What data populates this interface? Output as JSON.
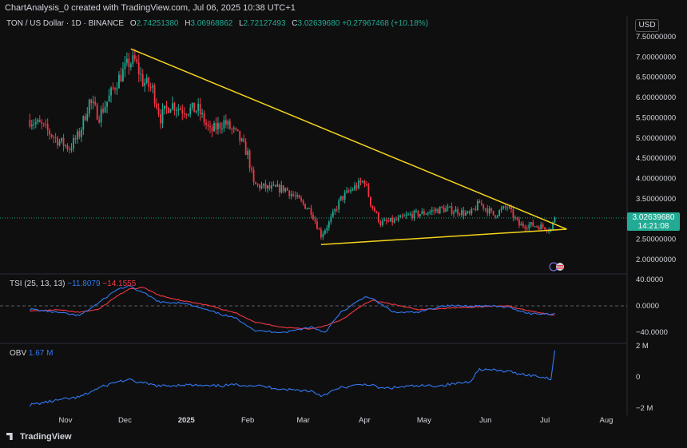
{
  "header": {
    "created_by": "ChartAnalysis_0 created with TradingView.com, Jul 06, 2025 10:38 UTC+1"
  },
  "main_legend": {
    "symbol": "TON / US Dollar · 1D · BINANCE",
    "open_key": "O",
    "open": "2.74251380",
    "high_key": "H",
    "high": "3.06968862",
    "low_key": "L",
    "low": "2.72127493",
    "close_key": "C",
    "close": "3.02639680",
    "change": "+0.27967468 (+10.18%)"
  },
  "currency": "USD",
  "price_badge": {
    "price": "3.02639680",
    "countdown": "14:21:08"
  },
  "tsi": {
    "label": "TSI (25, 13, 13)",
    "tsi_value": "−11.8079",
    "signal_value": "−14.1555"
  },
  "obv": {
    "label": "OBV",
    "value": "1.67 M"
  },
  "brand": "TradingView",
  "colors": {
    "up": "#22ab94",
    "down": "#f23645",
    "trendline": "#f5d31a",
    "tsi_line": "#3179f5",
    "signal_line": "#f23645",
    "obv_line": "#3179f5"
  },
  "chart_data": [
    {
      "type": "candlestick",
      "title": "TON / US Dollar · 1D · BINANCE",
      "y_ticks": [
        "7.50000000",
        "7.00000000",
        "6.50000000",
        "6.00000000",
        "5.50000000",
        "5.00000000",
        "4.50000000",
        "4.00000000",
        "3.50000000",
        "3.00000000",
        "2.50000000",
        "2.00000000"
      ],
      "ylim": [
        1.6,
        7.9
      ],
      "x_ticks": [
        "Nov",
        "Dec",
        "2025",
        "Feb",
        "Mar",
        "Apr",
        "May",
        "Jun",
        "Jul",
        "Aug"
      ],
      "daily_close_path": [
        [
          "2024-10-14",
          5.45
        ],
        [
          "2024-10-20",
          5.3
        ],
        [
          "2024-10-28",
          4.95
        ],
        [
          "2024-11-03",
          4.75
        ],
        [
          "2024-11-08",
          5.1
        ],
        [
          "2024-11-13",
          5.9
        ],
        [
          "2024-11-18",
          5.55
        ],
        [
          "2024-11-22",
          5.9
        ],
        [
          "2024-11-27",
          6.4
        ],
        [
          "2024-12-03",
          6.85
        ],
        [
          "2024-12-06",
          6.9
        ],
        [
          "2024-12-10",
          6.4
        ],
        [
          "2024-12-15",
          6.2
        ],
        [
          "2024-12-19",
          5.5
        ],
        [
          "2024-12-24",
          5.85
        ],
        [
          "2024-12-30",
          5.7
        ],
        [
          "2025-01-07",
          5.7
        ],
        [
          "2025-01-13",
          5.15
        ],
        [
          "2025-01-20",
          5.4
        ],
        [
          "2025-01-27",
          5.05
        ],
        [
          "2025-02-01",
          4.6
        ],
        [
          "2025-02-04",
          3.85
        ],
        [
          "2025-02-12",
          3.75
        ],
        [
          "2025-02-20",
          3.75
        ],
        [
          "2025-02-27",
          3.45
        ],
        [
          "2025-03-05",
          3.2
        ],
        [
          "2025-03-10",
          2.6
        ],
        [
          "2025-03-14",
          2.9
        ],
        [
          "2025-03-20",
          3.5
        ],
        [
          "2025-03-26",
          3.75
        ],
        [
          "2025-04-01",
          3.95
        ],
        [
          "2025-04-04",
          3.4
        ],
        [
          "2025-04-09",
          2.9
        ],
        [
          "2025-04-16",
          2.95
        ],
        [
          "2025-04-24",
          3.1
        ],
        [
          "2025-05-01",
          3.15
        ],
        [
          "2025-05-10",
          3.25
        ],
        [
          "2025-05-18",
          3.2
        ],
        [
          "2025-05-24",
          3.1
        ],
        [
          "2025-05-29",
          3.4
        ],
        [
          "2025-06-05",
          3.1
        ],
        [
          "2025-06-12",
          3.3
        ],
        [
          "2025-06-18",
          2.85
        ],
        [
          "2025-06-24",
          2.85
        ],
        [
          "2025-07-01",
          2.8
        ],
        [
          "2025-07-04",
          2.74
        ],
        [
          "2025-07-06",
          3.03
        ]
      ],
      "last_price": 3.0263968
    },
    {
      "type": "line",
      "title": "TSI (25, 13, 13)",
      "y_ticks": [
        "40.0000",
        "0.0000",
        "−40.0000"
      ],
      "series": [
        {
          "name": "TSI",
          "values_by_date": [
            [
              "2024-10-14",
              -5
            ],
            [
              "2024-10-28",
              -10
            ],
            [
              "2024-11-08",
              -15
            ],
            [
              "2024-11-18",
              5
            ],
            [
              "2024-11-27",
              25
            ],
            [
              "2024-12-03",
              30
            ],
            [
              "2024-12-10",
              20
            ],
            [
              "2024-12-19",
              5
            ],
            [
              "2024-12-30",
              5
            ],
            [
              "2025-01-13",
              -8
            ],
            [
              "2025-01-27",
              -20
            ],
            [
              "2025-02-05",
              -38
            ],
            [
              "2025-02-20",
              -40
            ],
            [
              "2025-03-05",
              -32
            ],
            [
              "2025-03-12",
              -40
            ],
            [
              "2025-03-20",
              -10
            ],
            [
              "2025-04-02",
              15
            ],
            [
              "2025-04-05",
              10
            ],
            [
              "2025-04-16",
              -10
            ],
            [
              "2025-04-28",
              -10
            ],
            [
              "2025-05-10",
              0
            ],
            [
              "2025-05-24",
              0
            ],
            [
              "2025-06-01",
              0
            ],
            [
              "2025-06-12",
              -2
            ],
            [
              "2025-06-24",
              -12
            ],
            [
              "2025-07-06",
              -11.8079
            ]
          ]
        },
        {
          "name": "Signal",
          "values_by_date": [
            [
              "2024-10-14",
              -8
            ],
            [
              "2024-10-28",
              -6
            ],
            [
              "2024-11-08",
              -10
            ],
            [
              "2024-11-18",
              -5
            ],
            [
              "2024-11-27",
              15
            ],
            [
              "2024-12-03",
              25
            ],
            [
              "2024-12-10",
              28
            ],
            [
              "2024-12-19",
              15
            ],
            [
              "2024-12-30",
              8
            ],
            [
              "2025-01-13",
              0
            ],
            [
              "2025-01-27",
              -12
            ],
            [
              "2025-02-05",
              -25
            ],
            [
              "2025-02-20",
              -33
            ],
            [
              "2025-03-05",
              -35
            ],
            [
              "2025-03-12",
              -30
            ],
            [
              "2025-03-20",
              -22
            ],
            [
              "2025-04-02",
              5
            ],
            [
              "2025-04-05",
              8
            ],
            [
              "2025-04-16",
              2
            ],
            [
              "2025-04-28",
              -6
            ],
            [
              "2025-05-10",
              -4
            ],
            [
              "2025-05-24",
              -2
            ],
            [
              "2025-06-01",
              -1
            ],
            [
              "2025-06-12",
              0
            ],
            [
              "2025-06-24",
              -8
            ],
            [
              "2025-07-06",
              -14.1555
            ]
          ]
        }
      ]
    },
    {
      "type": "line",
      "title": "OBV",
      "y_ticks": [
        "2 M",
        "0",
        "−2 M"
      ],
      "series": [
        {
          "name": "OBV",
          "values_by_date": [
            [
              "2024-10-14",
              -1.8
            ],
            [
              "2024-10-28",
              -1.5
            ],
            [
              "2024-11-08",
              -1.3
            ],
            [
              "2024-11-18",
              -0.7
            ],
            [
              "2024-11-27",
              -0.3
            ],
            [
              "2024-12-03",
              -0.2
            ],
            [
              "2024-12-10",
              -0.4
            ],
            [
              "2024-12-19",
              -0.6
            ],
            [
              "2024-12-30",
              -0.5
            ],
            [
              "2025-01-13",
              -0.6
            ],
            [
              "2025-01-27",
              -0.5
            ],
            [
              "2025-02-05",
              -0.55
            ],
            [
              "2025-02-20",
              -0.8
            ],
            [
              "2025-03-05",
              -0.9
            ],
            [
              "2025-03-10",
              -1.2
            ],
            [
              "2025-03-20",
              -0.7
            ],
            [
              "2025-04-02",
              -0.45
            ],
            [
              "2025-04-10",
              -0.75
            ],
            [
              "2025-04-24",
              -0.6
            ],
            [
              "2025-05-10",
              -0.55
            ],
            [
              "2025-05-24",
              -0.3
            ],
            [
              "2025-05-29",
              0.5
            ],
            [
              "2025-06-12",
              0.35
            ],
            [
              "2025-06-24",
              0.1
            ],
            [
              "2025-07-04",
              -0.1
            ],
            [
              "2025-07-06",
              1.67
            ]
          ]
        }
      ]
    }
  ],
  "trendlines": {
    "upper": [
      [
        "2024-12-04",
        7.2
      ],
      [
        "2025-07-12",
        2.75
      ]
    ],
    "lower": [
      [
        "2025-03-10",
        2.37
      ],
      [
        "2025-07-12",
        2.75
      ]
    ]
  }
}
